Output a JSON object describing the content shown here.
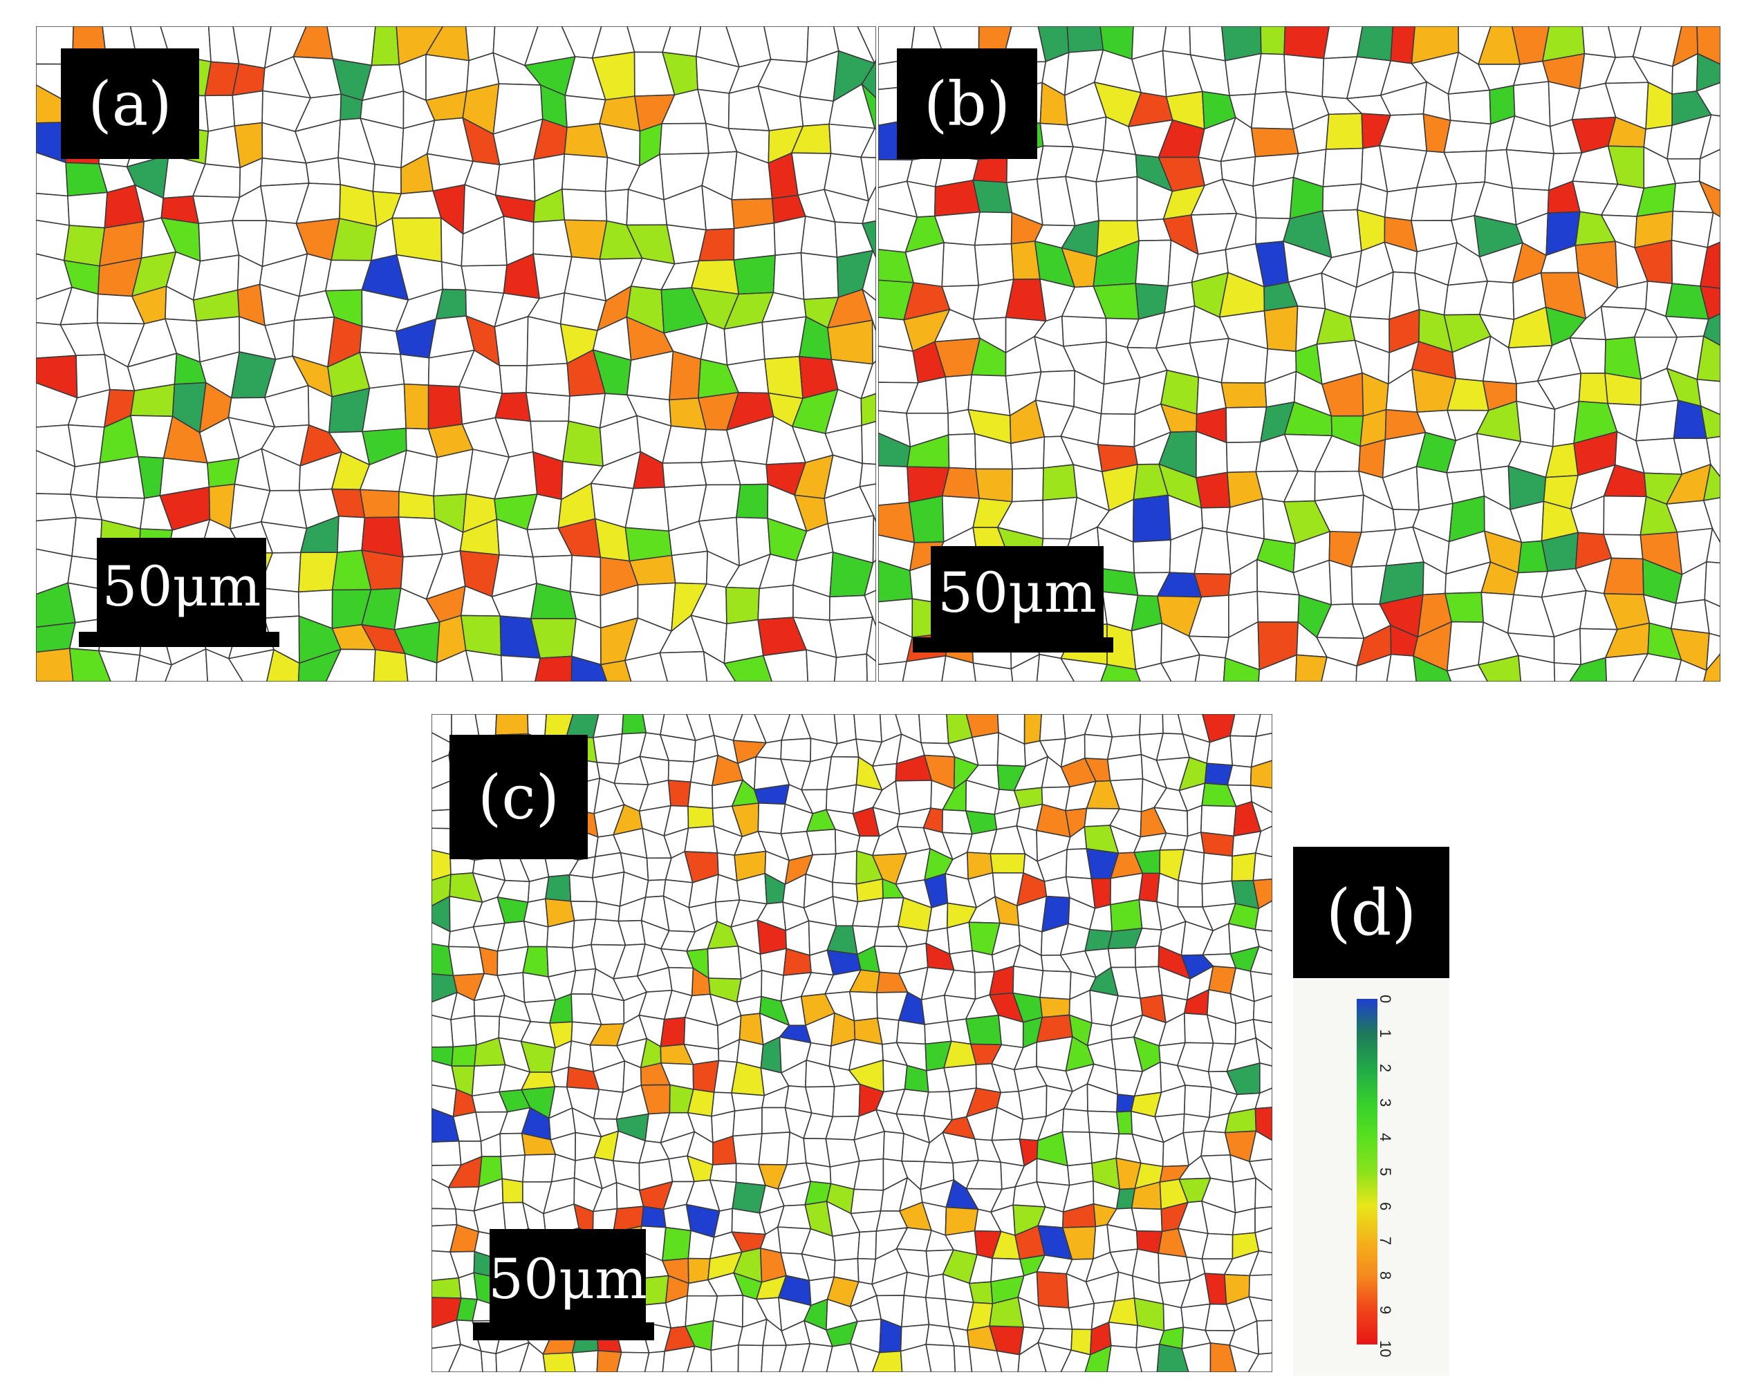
{
  "panels": {
    "a": {
      "label": "(a)",
      "scale": "50μm"
    },
    "b": {
      "label": "(b)",
      "scale": "50μm"
    },
    "c": {
      "label": "(c)",
      "scale": "50μm"
    }
  },
  "legend": {
    "label": "(d)",
    "ticks": [
      "0",
      "1",
      "2",
      "3",
      "4",
      "5",
      "6",
      "7",
      "8",
      "9",
      "10"
    ],
    "colors": [
      "#1f3fd0",
      "#1e7a5a",
      "#22a84a",
      "#35cf2c",
      "#58e020",
      "#8ae11d",
      "#e8e61a",
      "#f4b21b",
      "#f48a1e",
      "#f0441a",
      "#e81616"
    ]
  },
  "map_colors": {
    "boundary": "#3a3a3a",
    "grain_palette": [
      "#1f3fd0",
      "#2ea35a",
      "#3ccf2a",
      "#5fe01f",
      "#9ee41c",
      "#ecea22",
      "#f6b41a",
      "#f7841d",
      "#ef4a1a",
      "#e92a18"
    ]
  }
}
